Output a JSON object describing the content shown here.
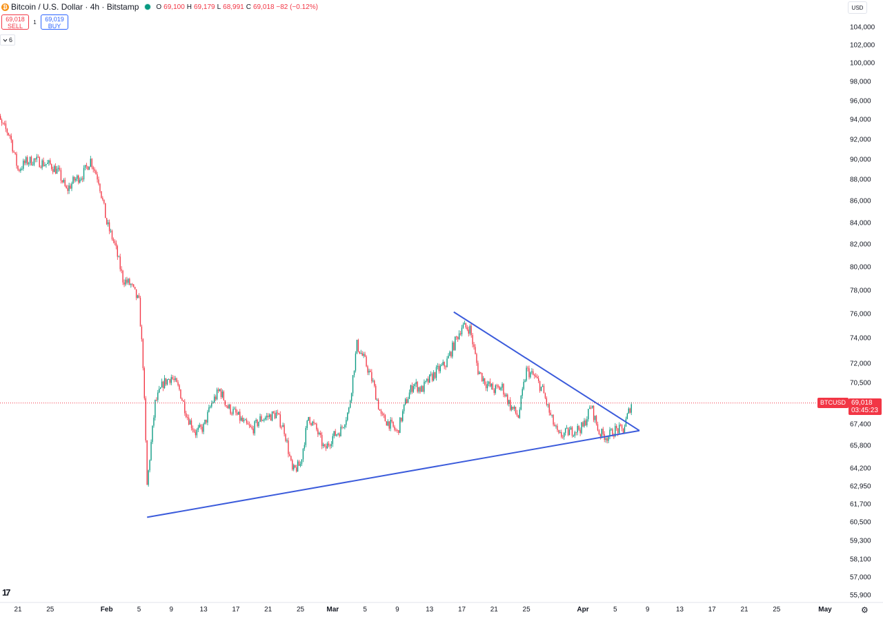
{
  "header": {
    "symbol_title": "Bitcoin / U.S. Dollar · 4h · Bitstamp",
    "coin_glyph": "₿",
    "ohlc": [
      {
        "label": "O",
        "value": "69,100"
      },
      {
        "label": "H",
        "value": "69,179"
      },
      {
        "label": "L",
        "value": "68,991"
      },
      {
        "label": "C",
        "value": "69,018 −82 (−0.12%)"
      }
    ]
  },
  "trade": {
    "sell_price": "69,018",
    "sell_label": "SELL",
    "spread": "1",
    "buy_price": "69,019",
    "buy_label": "BUY"
  },
  "indicators_toggle": {
    "icon": "chevron-down-icon",
    "count": "6"
  },
  "currency": "USD",
  "colors": {
    "up": "#089981",
    "down": "#f23645",
    "trendline": "#3b5bdb",
    "last_price_line": "#f23645",
    "text": "#131722"
  },
  "price_axis": {
    "tick_labels": [
      "104,000",
      "102,000",
      "100,000",
      "98,000",
      "96,000",
      "94,000",
      "92,000",
      "90,000",
      "88,000",
      "86,000",
      "84,000",
      "82,000",
      "80,000",
      "78,000",
      "76,000",
      "74,000",
      "72,000",
      "70,500",
      "67,400",
      "65,800",
      "64,200",
      "62,950",
      "61,700",
      "60,500",
      "59,300",
      "58,100",
      "57,000",
      "55,900"
    ],
    "symbol_tag": "BTCUSD",
    "last_price": "69,018",
    "countdown": "03:45:23"
  },
  "time_axis": {
    "tick_labels": [
      "21",
      "25",
      "Feb",
      "5",
      "9",
      "13",
      "17",
      "21",
      "25",
      "Mar",
      "5",
      "9",
      "13",
      "17",
      "21",
      "25",
      "Apr",
      "5",
      "9",
      "13",
      "17",
      "21",
      "25",
      "May"
    ]
  },
  "chart_data": {
    "type": "candlestick",
    "title": "Bitcoin / U.S. Dollar · 4h · Bitstamp",
    "interval": "4h",
    "scale": "log",
    "grid": false,
    "ylim": [
      55900,
      104000
    ],
    "x_range": [
      "Jan 18",
      "May 2"
    ],
    "last_price": 69018,
    "trajectory": [
      {
        "date": "Jan 18",
        "price": 95200
      },
      {
        "date": "Jan 19",
        "price": 93500
      },
      {
        "date": "Jan 20",
        "price": 92500
      },
      {
        "date": "Jan 21",
        "price": 89000
      },
      {
        "date": "Jan 22",
        "price": 89800
      },
      {
        "date": "Jan 23",
        "price": 90000
      },
      {
        "date": "Jan 24",
        "price": 89700
      },
      {
        "date": "Jan 25",
        "price": 89500
      },
      {
        "date": "Jan 26",
        "price": 88800
      },
      {
        "date": "Jan 27",
        "price": 87000
      },
      {
        "date": "Jan 28",
        "price": 88000
      },
      {
        "date": "Jan 29",
        "price": 88500
      },
      {
        "date": "Jan 30",
        "price": 90000
      },
      {
        "date": "Jan 31",
        "price": 88000
      },
      {
        "date": "Feb 1",
        "price": 84000
      },
      {
        "date": "Feb 2",
        "price": 82000
      },
      {
        "date": "Feb 3",
        "price": 79000
      },
      {
        "date": "Feb 4",
        "price": 78500
      },
      {
        "date": "Feb 5",
        "price": 77000
      },
      {
        "date": "Feb 5 12:00",
        "price": 72000
      },
      {
        "date": "Feb 6",
        "price": 63000
      },
      {
        "date": "Feb 7",
        "price": 69000
      },
      {
        "date": "Feb 8",
        "price": 70500
      },
      {
        "date": "Feb 9",
        "price": 71000
      },
      {
        "date": "Feb 10",
        "price": 70000
      },
      {
        "date": "Feb 11",
        "price": 68000
      },
      {
        "date": "Feb 12",
        "price": 66800
      },
      {
        "date": "Feb 13",
        "price": 67200
      },
      {
        "date": "Feb 14",
        "price": 69000
      },
      {
        "date": "Feb 15",
        "price": 70000
      },
      {
        "date": "Feb 16",
        "price": 68700
      },
      {
        "date": "Feb 17",
        "price": 68200
      },
      {
        "date": "Feb 18",
        "price": 67500
      },
      {
        "date": "Feb 19",
        "price": 67000
      },
      {
        "date": "Feb 20",
        "price": 67800
      },
      {
        "date": "Feb 21",
        "price": 68000
      },
      {
        "date": "Feb 22",
        "price": 68200
      },
      {
        "date": "Feb 23",
        "price": 67000
      },
      {
        "date": "Feb 24",
        "price": 64000
      },
      {
        "date": "Feb 25",
        "price": 64500
      },
      {
        "date": "Feb 26",
        "price": 68000
      },
      {
        "date": "Feb 27",
        "price": 67000
      },
      {
        "date": "Feb 28",
        "price": 65500
      },
      {
        "date": "Mar 1",
        "price": 66500
      },
      {
        "date": "Mar 2",
        "price": 67000
      },
      {
        "date": "Mar 3",
        "price": 68500
      },
      {
        "date": "Mar 4",
        "price": 73500
      },
      {
        "date": "Mar 5",
        "price": 72200
      },
      {
        "date": "Mar 6",
        "price": 70500
      },
      {
        "date": "Mar 7",
        "price": 68000
      },
      {
        "date": "Mar 8",
        "price": 67500
      },
      {
        "date": "Mar 9",
        "price": 66800
      },
      {
        "date": "Mar 10",
        "price": 69000
      },
      {
        "date": "Mar 11",
        "price": 70500
      },
      {
        "date": "Mar 12",
        "price": 70000
      },
      {
        "date": "Mar 13",
        "price": 70800
      },
      {
        "date": "Mar 14",
        "price": 71500
      },
      {
        "date": "Mar 15",
        "price": 72000
      },
      {
        "date": "Mar 16",
        "price": 73500
      },
      {
        "date": "Mar 17",
        "price": 75000
      },
      {
        "date": "Mar 18",
        "price": 74800
      },
      {
        "date": "Mar 19",
        "price": 71500
      },
      {
        "date": "Mar 20",
        "price": 70500
      },
      {
        "date": "Mar 21",
        "price": 70000
      },
      {
        "date": "Mar 22",
        "price": 70200
      },
      {
        "date": "Mar 23",
        "price": 68800
      },
      {
        "date": "Mar 24",
        "price": 68000
      },
      {
        "date": "Mar 25",
        "price": 71500
      },
      {
        "date": "Mar 26",
        "price": 71000
      },
      {
        "date": "Mar 27",
        "price": 70000
      },
      {
        "date": "Mar 28",
        "price": 68000
      },
      {
        "date": "Mar 29",
        "price": 66500
      },
      {
        "date": "Mar 30",
        "price": 66800
      },
      {
        "date": "Mar 31",
        "price": 67000
      },
      {
        "date": "Apr 1",
        "price": 67200
      },
      {
        "date": "Apr 2",
        "price": 68800
      },
      {
        "date": "Apr 3",
        "price": 66800
      },
      {
        "date": "Apr 4",
        "price": 66500
      },
      {
        "date": "Apr 5",
        "price": 67000
      },
      {
        "date": "Apr 6",
        "price": 67000
      },
      {
        "date": "Apr 7",
        "price": 69018
      }
    ],
    "trendlines": [
      {
        "name": "",
        "points": [
          {
            "date": "Feb 6",
            "price": 60850
          },
          {
            "date": "Apr 8",
            "price": 66950
          }
        ]
      },
      {
        "name": "",
        "points": [
          {
            "date": "Mar 16",
            "price": 76200
          },
          {
            "date": "Apr 8",
            "price": 66950
          }
        ]
      }
    ]
  }
}
